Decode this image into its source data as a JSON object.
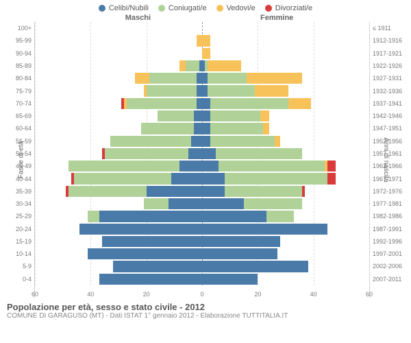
{
  "legend": [
    {
      "label": "Celibi/Nubili",
      "color": "#4a7aa8"
    },
    {
      "label": "Coniugati/e",
      "color": "#b0d298"
    },
    {
      "label": "Vedovi/e",
      "color": "#f8c25a"
    },
    {
      "label": "Divorziati/e",
      "color": "#d93a3a"
    }
  ],
  "header_left": "Maschi",
  "header_right": "Femmine",
  "y_left_label": "Fasce di età",
  "y_right_label": "Anni di nascita",
  "title": "Popolazione per età, sesso e stato civile - 2012",
  "subtitle": "COMUNE DI GARAGUSO (MT) - Dati ISTAT 1° gennaio 2012 - Elaborazione TUTTITALIA.IT",
  "x_max": 60,
  "x_ticks": [
    60,
    40,
    20,
    0,
    20,
    40,
    60
  ],
  "series_colors": {
    "celibi": "#4a7aa8",
    "coniugati": "#b0d298",
    "vedovi": "#f8c25a",
    "divorziati": "#d93a3a"
  },
  "background_color": "#ffffff",
  "grid_color": "#dddddd",
  "rows": [
    {
      "age": "100+",
      "birth": "≤ 1911",
      "m": [
        0,
        0,
        0,
        0
      ],
      "f": [
        0,
        0,
        0,
        0
      ]
    },
    {
      "age": "95-99",
      "birth": "1912-1916",
      "m": [
        0,
        0,
        2,
        0
      ],
      "f": [
        0,
        0,
        3,
        0
      ]
    },
    {
      "age": "90-94",
      "birth": "1917-1921",
      "m": [
        0,
        0,
        0,
        0
      ],
      "f": [
        0,
        0,
        3,
        0
      ]
    },
    {
      "age": "85-89",
      "birth": "1922-1926",
      "m": [
        1,
        5,
        2,
        0
      ],
      "f": [
        1,
        1,
        12,
        0
      ]
    },
    {
      "age": "80-84",
      "birth": "1927-1931",
      "m": [
        2,
        17,
        5,
        0
      ],
      "f": [
        2,
        14,
        20,
        0
      ]
    },
    {
      "age": "75-79",
      "birth": "1932-1936",
      "m": [
        2,
        18,
        1,
        0
      ],
      "f": [
        2,
        17,
        12,
        0
      ]
    },
    {
      "age": "70-74",
      "birth": "1937-1941",
      "m": [
        2,
        25,
        1,
        1
      ],
      "f": [
        3,
        28,
        8,
        0
      ]
    },
    {
      "age": "65-69",
      "birth": "1942-1946",
      "m": [
        3,
        13,
        0,
        0
      ],
      "f": [
        3,
        18,
        3,
        0
      ]
    },
    {
      "age": "60-64",
      "birth": "1947-1951",
      "m": [
        3,
        19,
        0,
        0
      ],
      "f": [
        3,
        19,
        2,
        0
      ]
    },
    {
      "age": "55-59",
      "birth": "1952-1956",
      "m": [
        4,
        29,
        0,
        0
      ],
      "f": [
        3,
        23,
        2,
        0
      ]
    },
    {
      "age": "50-54",
      "birth": "1957-1961",
      "m": [
        5,
        30,
        0,
        1
      ],
      "f": [
        5,
        31,
        0,
        0
      ]
    },
    {
      "age": "45-49",
      "birth": "1962-1966",
      "m": [
        8,
        40,
        0,
        0
      ],
      "f": [
        6,
        38,
        1,
        3
      ]
    },
    {
      "age": "40-44",
      "birth": "1967-1971",
      "m": [
        11,
        35,
        0,
        1
      ],
      "f": [
        8,
        37,
        0,
        3
      ]
    },
    {
      "age": "35-39",
      "birth": "1972-1976",
      "m": [
        20,
        28,
        0,
        1
      ],
      "f": [
        8,
        28,
        0,
        1
      ]
    },
    {
      "age": "30-34",
      "birth": "1977-1981",
      "m": [
        12,
        9,
        0,
        0
      ],
      "f": [
        15,
        21,
        0,
        0
      ]
    },
    {
      "age": "25-29",
      "birth": "1982-1986",
      "m": [
        37,
        4,
        0,
        0
      ],
      "f": [
        23,
        10,
        0,
        0
      ]
    },
    {
      "age": "20-24",
      "birth": "1987-1991",
      "m": [
        44,
        0,
        0,
        0
      ],
      "f": [
        45,
        0,
        0,
        0
      ]
    },
    {
      "age": "15-19",
      "birth": "1992-1996",
      "m": [
        36,
        0,
        0,
        0
      ],
      "f": [
        28,
        0,
        0,
        0
      ]
    },
    {
      "age": "10-14",
      "birth": "1997-2001",
      "m": [
        41,
        0,
        0,
        0
      ],
      "f": [
        27,
        0,
        0,
        0
      ]
    },
    {
      "age": "5-9",
      "birth": "2002-2006",
      "m": [
        32,
        0,
        0,
        0
      ],
      "f": [
        38,
        0,
        0,
        0
      ]
    },
    {
      "age": "0-4",
      "birth": "2007-2011",
      "m": [
        37,
        0,
        0,
        0
      ],
      "f": [
        20,
        0,
        0,
        0
      ]
    }
  ]
}
